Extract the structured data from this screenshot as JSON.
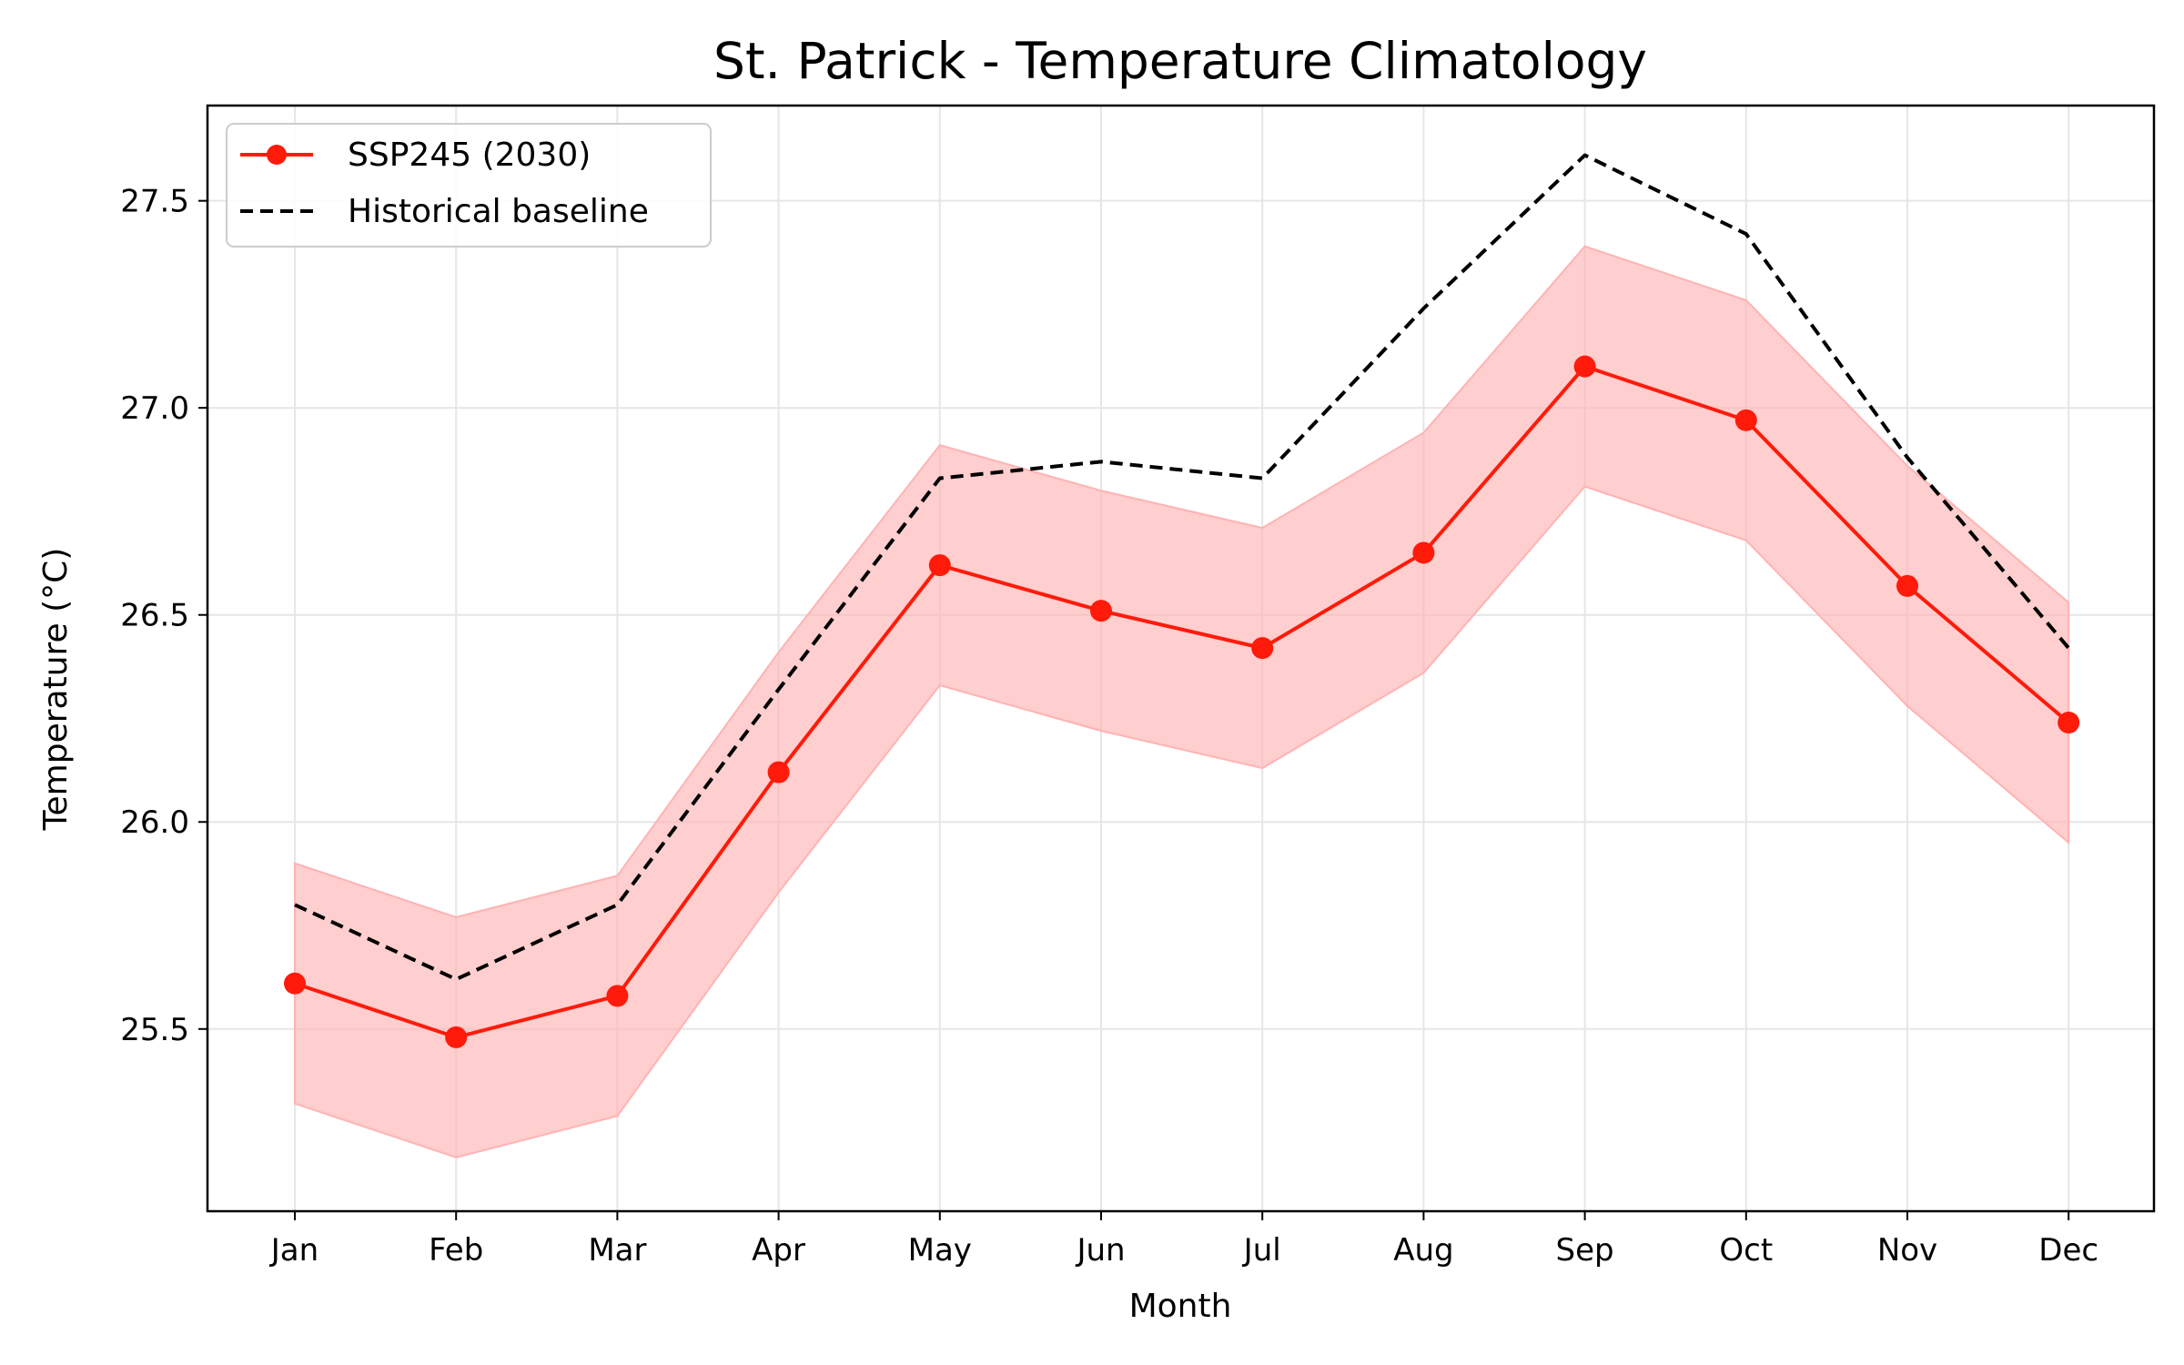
{
  "chart_data": {
    "type": "line",
    "title": "St. Patrick - Temperature Climatology",
    "xlabel": "Month",
    "ylabel": "Temperature (°C)",
    "categories": [
      "Jan",
      "Feb",
      "Mar",
      "Apr",
      "May",
      "Jun",
      "Jul",
      "Aug",
      "Sep",
      "Oct",
      "Nov",
      "Dec"
    ],
    "ylim": [
      25.06,
      27.73
    ],
    "yticks": [
      25.5,
      26.0,
      26.5,
      27.0,
      27.5
    ],
    "ytick_labels": [
      "25.5",
      "26.0",
      "26.5",
      "27.0",
      "27.5"
    ],
    "grid": true,
    "legend_position": "top-left",
    "series": [
      {
        "name": "SSP245 (2030)",
        "style": "solid line with circle markers",
        "color": "#ff1a0a",
        "values": [
          25.61,
          25.48,
          25.58,
          26.12,
          26.62,
          26.51,
          26.42,
          26.65,
          27.1,
          26.97,
          26.57,
          26.24
        ],
        "band_lower": [
          25.32,
          25.19,
          25.29,
          25.83,
          26.33,
          26.22,
          26.13,
          26.36,
          26.81,
          26.68,
          26.28,
          25.95
        ],
        "band_upper": [
          25.9,
          25.77,
          25.87,
          26.41,
          26.91,
          26.8,
          26.71,
          26.94,
          27.39,
          27.26,
          26.86,
          26.53
        ],
        "band_color": "#ffb3b3"
      },
      {
        "name": "Historical baseline",
        "style": "dashed line",
        "color": "#000000",
        "values": [
          25.8,
          25.62,
          25.8,
          26.32,
          26.83,
          26.87,
          26.83,
          27.24,
          27.61,
          27.42,
          26.88,
          26.42
        ]
      }
    ]
  }
}
